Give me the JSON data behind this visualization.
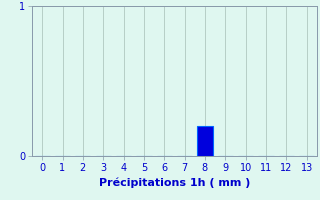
{
  "categories": [
    0,
    1,
    2,
    3,
    4,
    5,
    6,
    7,
    8,
    9,
    10,
    11,
    12,
    13
  ],
  "values": [
    0,
    0,
    0,
    0,
    0,
    0,
    0,
    0,
    0.2,
    0,
    0,
    0,
    0,
    0
  ],
  "bar_color": "#0000dd",
  "bar_edge_color": "#0066ff",
  "background_color": "#dff7f0",
  "grid_color": "#b0c8c0",
  "spine_color": "#8899aa",
  "text_color": "#0000cc",
  "xlabel": "Précipitations 1h ( mm )",
  "xlabel_fontsize": 8,
  "tick_fontsize": 7,
  "ylim": [
    0,
    1
  ],
  "xlim": [
    -0.5,
    13.5
  ],
  "yticks": [
    0,
    1
  ],
  "xticks": [
    0,
    1,
    2,
    3,
    4,
    5,
    6,
    7,
    8,
    9,
    10,
    11,
    12,
    13
  ],
  "bar_width": 0.75
}
